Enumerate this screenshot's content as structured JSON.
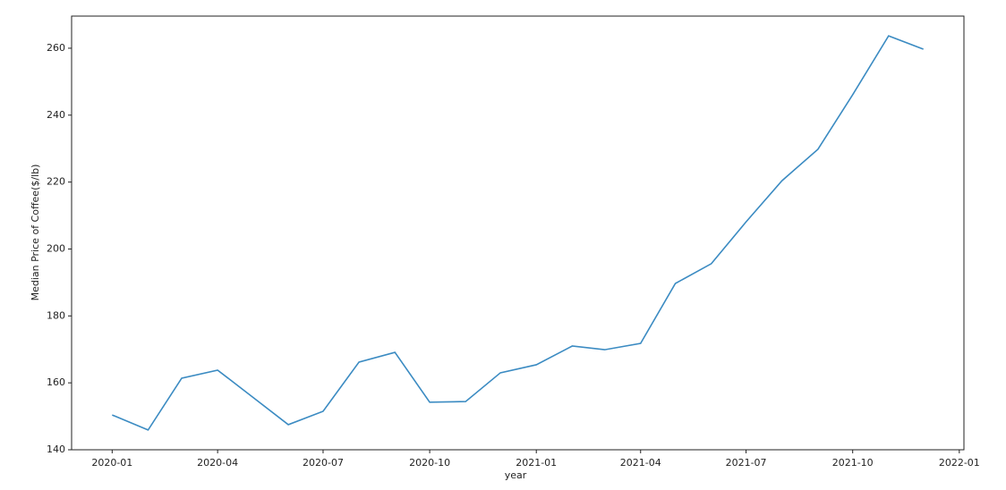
{
  "chart_data": {
    "type": "line",
    "x_label": "year",
    "y_label": "Median Price of Coffee($/lb)",
    "x": [
      "2020-01",
      "2020-02",
      "2020-03",
      "2020-04",
      "2020-05",
      "2020-06",
      "2020-07",
      "2020-08",
      "2020-09",
      "2020-10",
      "2020-11",
      "2020-12",
      "2021-01",
      "2021-02",
      "2021-03",
      "2021-04",
      "2021-05",
      "2021-06",
      "2021-07",
      "2021-08",
      "2021-09",
      "2021-10",
      "2021-11",
      "2021-12"
    ],
    "series": [
      {
        "color": "#3b8bc2",
        "values": [
          150.4,
          145.9,
          161.4,
          163.8,
          155.8,
          147.5,
          151.5,
          166.2,
          169.1,
          154.2,
          154.4,
          163.0,
          165.4,
          171.0,
          169.9,
          171.8,
          189.7,
          195.6,
          208.1,
          220.4,
          229.8,
          246.1,
          263.7,
          259.7
        ]
      }
    ],
    "xticks": [
      "2020-01",
      "2020-04",
      "2020-07",
      "2020-10",
      "2021-01",
      "2021-04",
      "2021-07",
      "2021-10",
      "2022-01"
    ],
    "ylim": [
      140,
      269.6
    ],
    "yticks": [
      140,
      160,
      180,
      200,
      220,
      240,
      260
    ],
    "grid": false
  }
}
